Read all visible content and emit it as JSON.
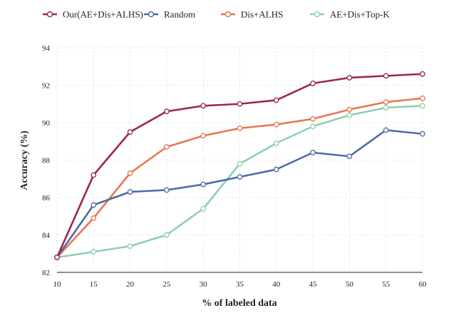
{
  "chart_data": {
    "type": "line",
    "title": "",
    "xlabel": "% of labeled data",
    "ylabel": "Accuracy (%)",
    "x": [
      10,
      15,
      20,
      25,
      30,
      35,
      40,
      45,
      50,
      55,
      60
    ],
    "xticks": [
      "10",
      "15",
      "20",
      "25",
      "30",
      "35",
      "40",
      "45",
      "50",
      "55",
      "60"
    ],
    "yticks": [
      "82",
      "84",
      "86",
      "88",
      "90",
      "92",
      "94"
    ],
    "xlim": [
      10,
      60
    ],
    "ylim": [
      82,
      94
    ],
    "grid": true,
    "legend_position": "top",
    "series": [
      {
        "name": "Our(AE+Dis+ALHS)",
        "color": "#9b2550",
        "values": [
          82.8,
          87.2,
          89.5,
          90.6,
          90.9,
          91.0,
          91.2,
          92.1,
          92.4,
          92.5,
          92.6
        ]
      },
      {
        "name": "Random",
        "color": "#4d6aa8",
        "values": [
          82.8,
          85.6,
          86.3,
          86.4,
          86.7,
          87.1,
          87.5,
          88.4,
          88.2,
          89.6,
          89.4
        ]
      },
      {
        "name": "Dis+ALHS",
        "color": "#e8774f",
        "values": [
          82.8,
          84.9,
          87.3,
          88.7,
          89.3,
          89.7,
          89.9,
          90.2,
          90.7,
          91.1,
          91.3
        ]
      },
      {
        "name": "AE+Dis+Top-K",
        "color": "#8fd0ac",
        "values": [
          82.8,
          83.1,
          83.4,
          84.0,
          85.4,
          87.8,
          88.9,
          89.8,
          90.4,
          90.8,
          90.9
        ]
      }
    ]
  }
}
